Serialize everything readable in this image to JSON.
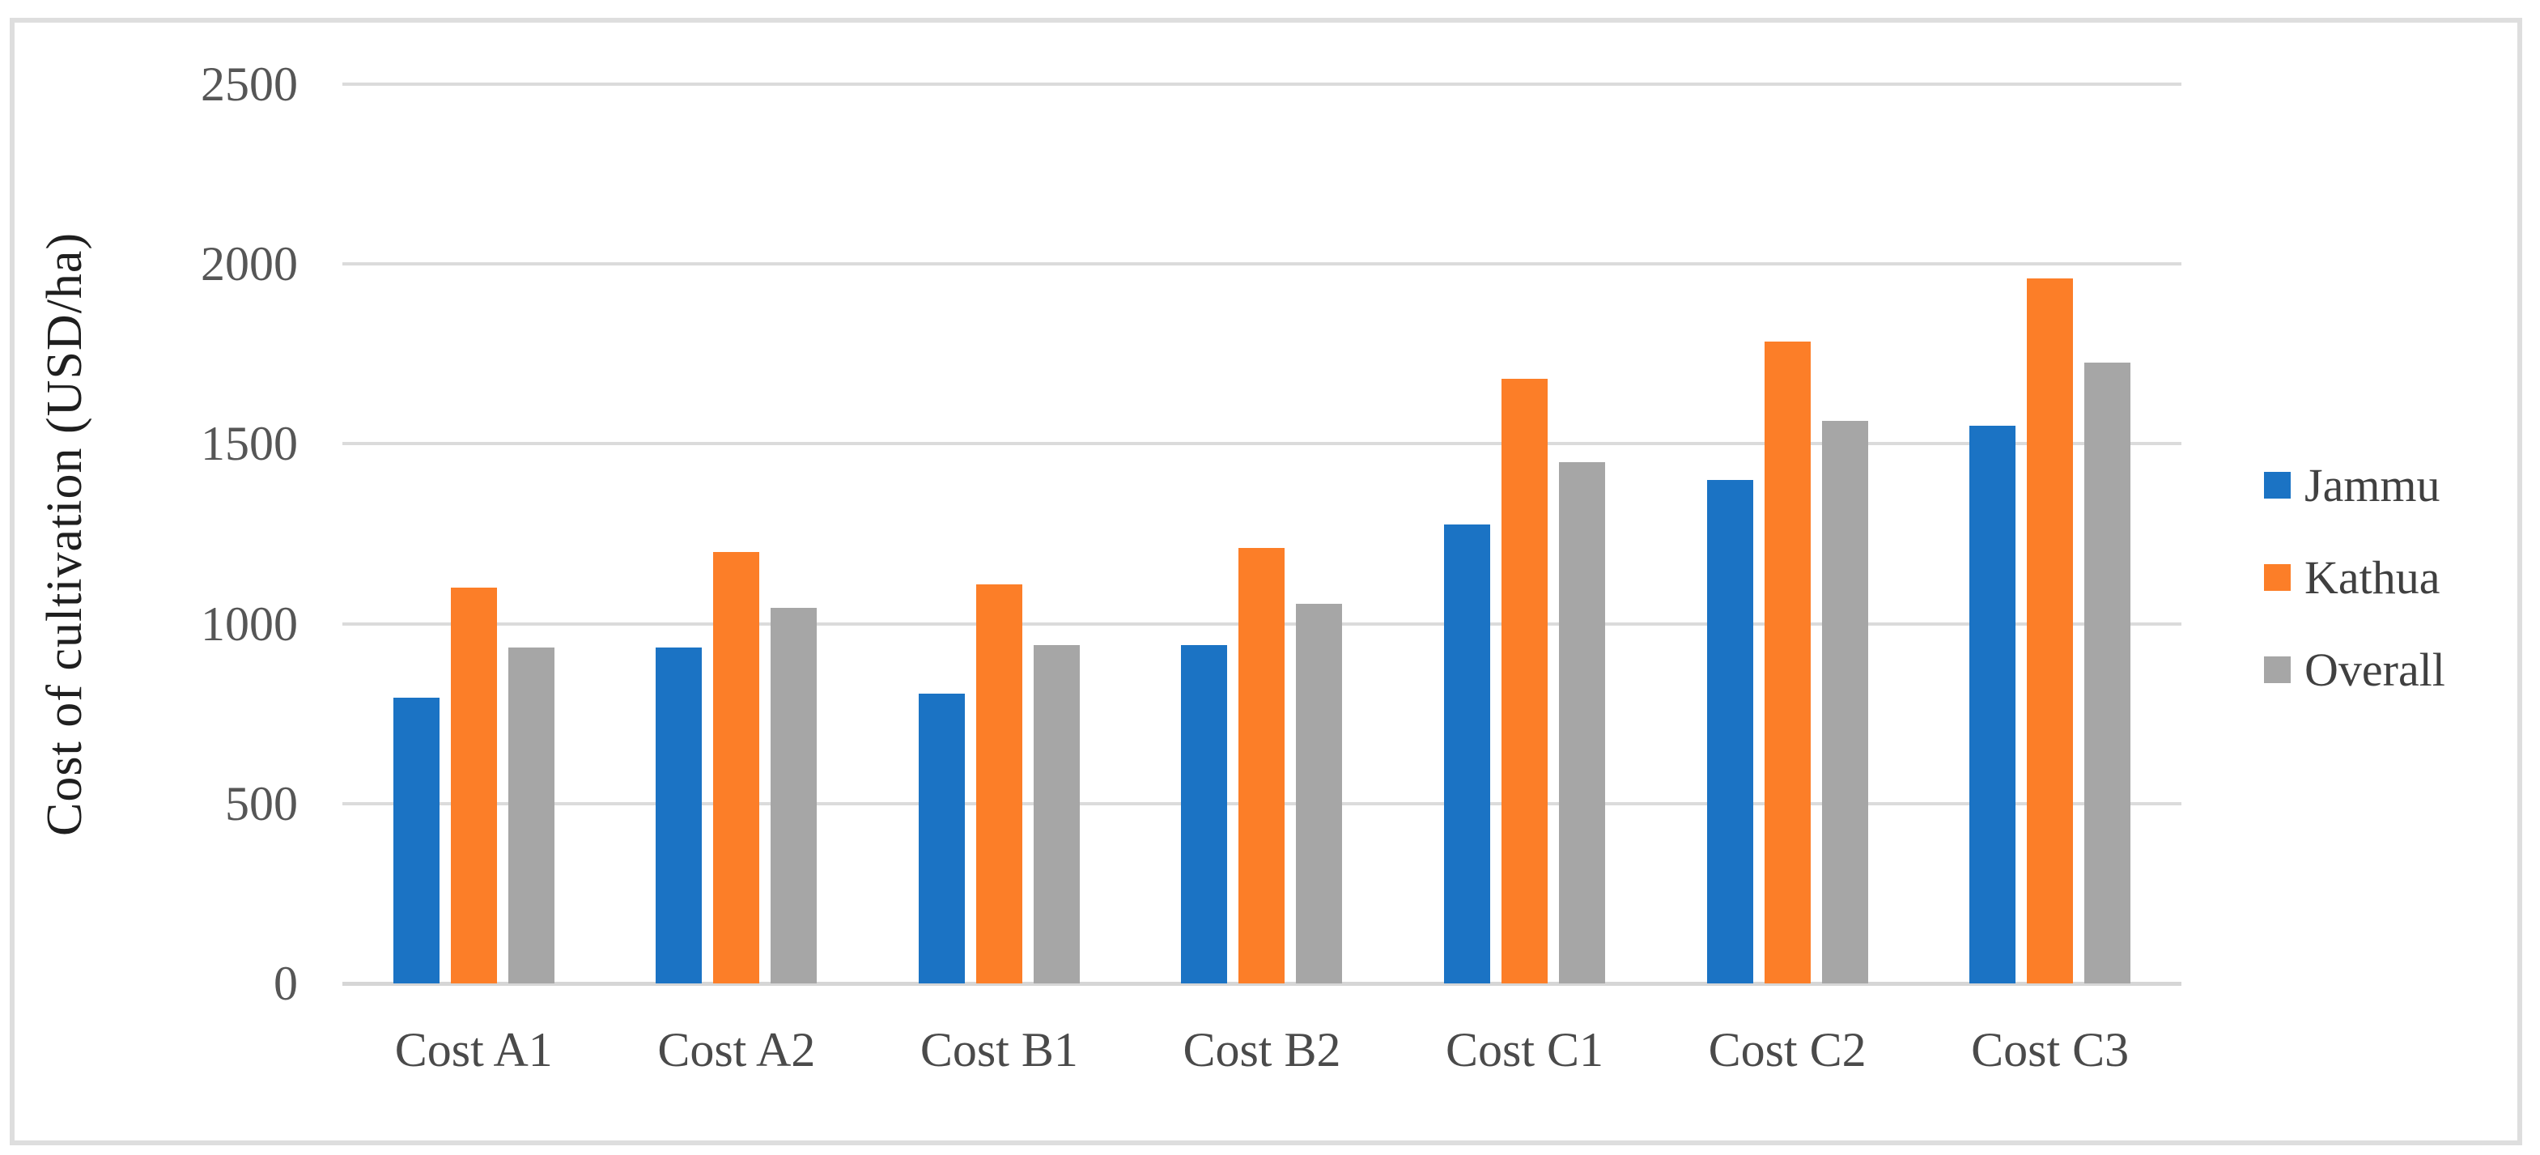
{
  "chart_data": {
    "type": "bar",
    "title": "",
    "xlabel": "",
    "ylabel": "Cost of cultivation (USD/ha)",
    "categories": [
      "Cost A1",
      "Cost A2",
      "Cost B1",
      "Cost B2",
      "Cost C1",
      "Cost C2",
      "Cost C3"
    ],
    "series": [
      {
        "name": "Jammu",
        "color": "#1b73c4",
        "values": [
          795,
          935,
          805,
          940,
          1275,
          1400,
          1550
        ]
      },
      {
        "name": "Kathua",
        "color": "#fc7e28",
        "values": [
          1100,
          1200,
          1110,
          1210,
          1680,
          1785,
          1960
        ]
      },
      {
        "name": "Overall",
        "color": "#a6a6a6",
        "values": [
          935,
          1045,
          940,
          1055,
          1450,
          1565,
          1725
        ]
      }
    ],
    "ylim": [
      0,
      2500
    ],
    "yticks": [
      0,
      500,
      1000,
      1500,
      2000,
      2500
    ],
    "grid": true,
    "legend_position": "right"
  },
  "colors": {
    "background": "#ffffff",
    "frame_border": "#dedede",
    "gridline": "#dbdbdb",
    "axis_line": "#d6d6d6",
    "tick_text": "#565656",
    "category_text": "#4a4a4a",
    "axis_title_text": "#1f1f1f",
    "legend_text": "#404040"
  }
}
